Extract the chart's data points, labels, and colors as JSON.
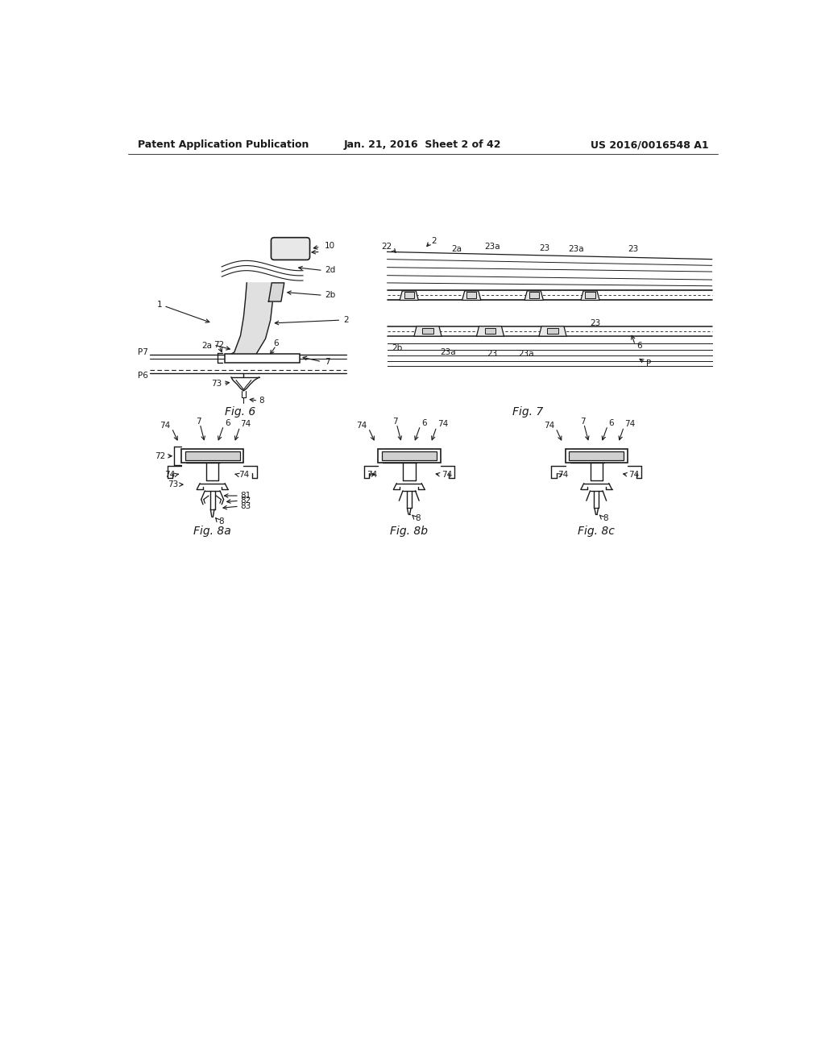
{
  "background_color": "#ffffff",
  "header_left": "Patent Application Publication",
  "header_center": "Jan. 21, 2016  Sheet 2 of 42",
  "header_right": "US 2016/0016548 A1",
  "line_color": "#1a1a1a",
  "text_color": "#1a1a1a",
  "header_font_size": 9,
  "label_font_size": 7.5,
  "fig_label_font_size": 10
}
